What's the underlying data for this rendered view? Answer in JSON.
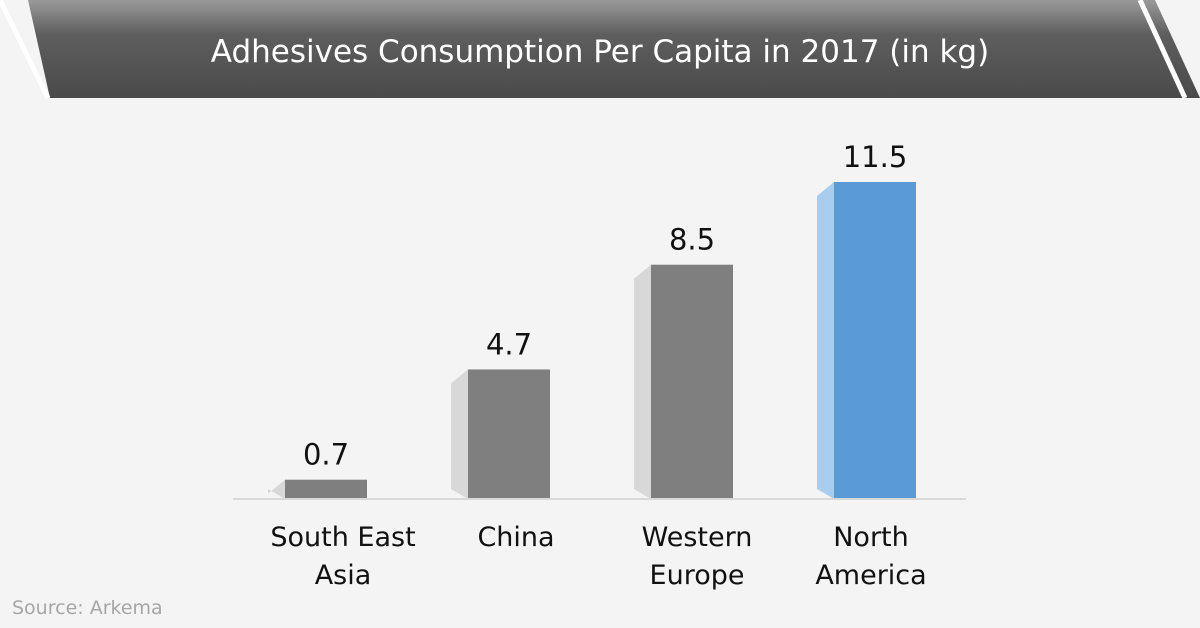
{
  "chart_data": {
    "type": "bar",
    "title": "Adhesives Consumption Per Capita in 2017 (in kg)",
    "unit": "kg",
    "categories": [
      [
        "South East",
        "Asia"
      ],
      [
        "China"
      ],
      [
        "Western",
        "Europe"
      ],
      [
        "North",
        "America"
      ]
    ],
    "values": [
      0.7,
      4.7,
      8.5,
      11.5
    ],
    "value_labels": [
      "0.7",
      "4.7",
      "8.5",
      "11.5"
    ],
    "highlight_index": 3,
    "ylim": [
      0,
      11.5
    ],
    "grid": false,
    "legend": "none"
  },
  "colors": {
    "bar": "#7f7f7f",
    "bar_side": "#d8d8d8",
    "highlight": "#5b9bd5",
    "highlight_side": "#a9cdef",
    "banner": "#5a5a5a",
    "baseline": "#d9d9d9"
  },
  "source": "Source: Arkema"
}
